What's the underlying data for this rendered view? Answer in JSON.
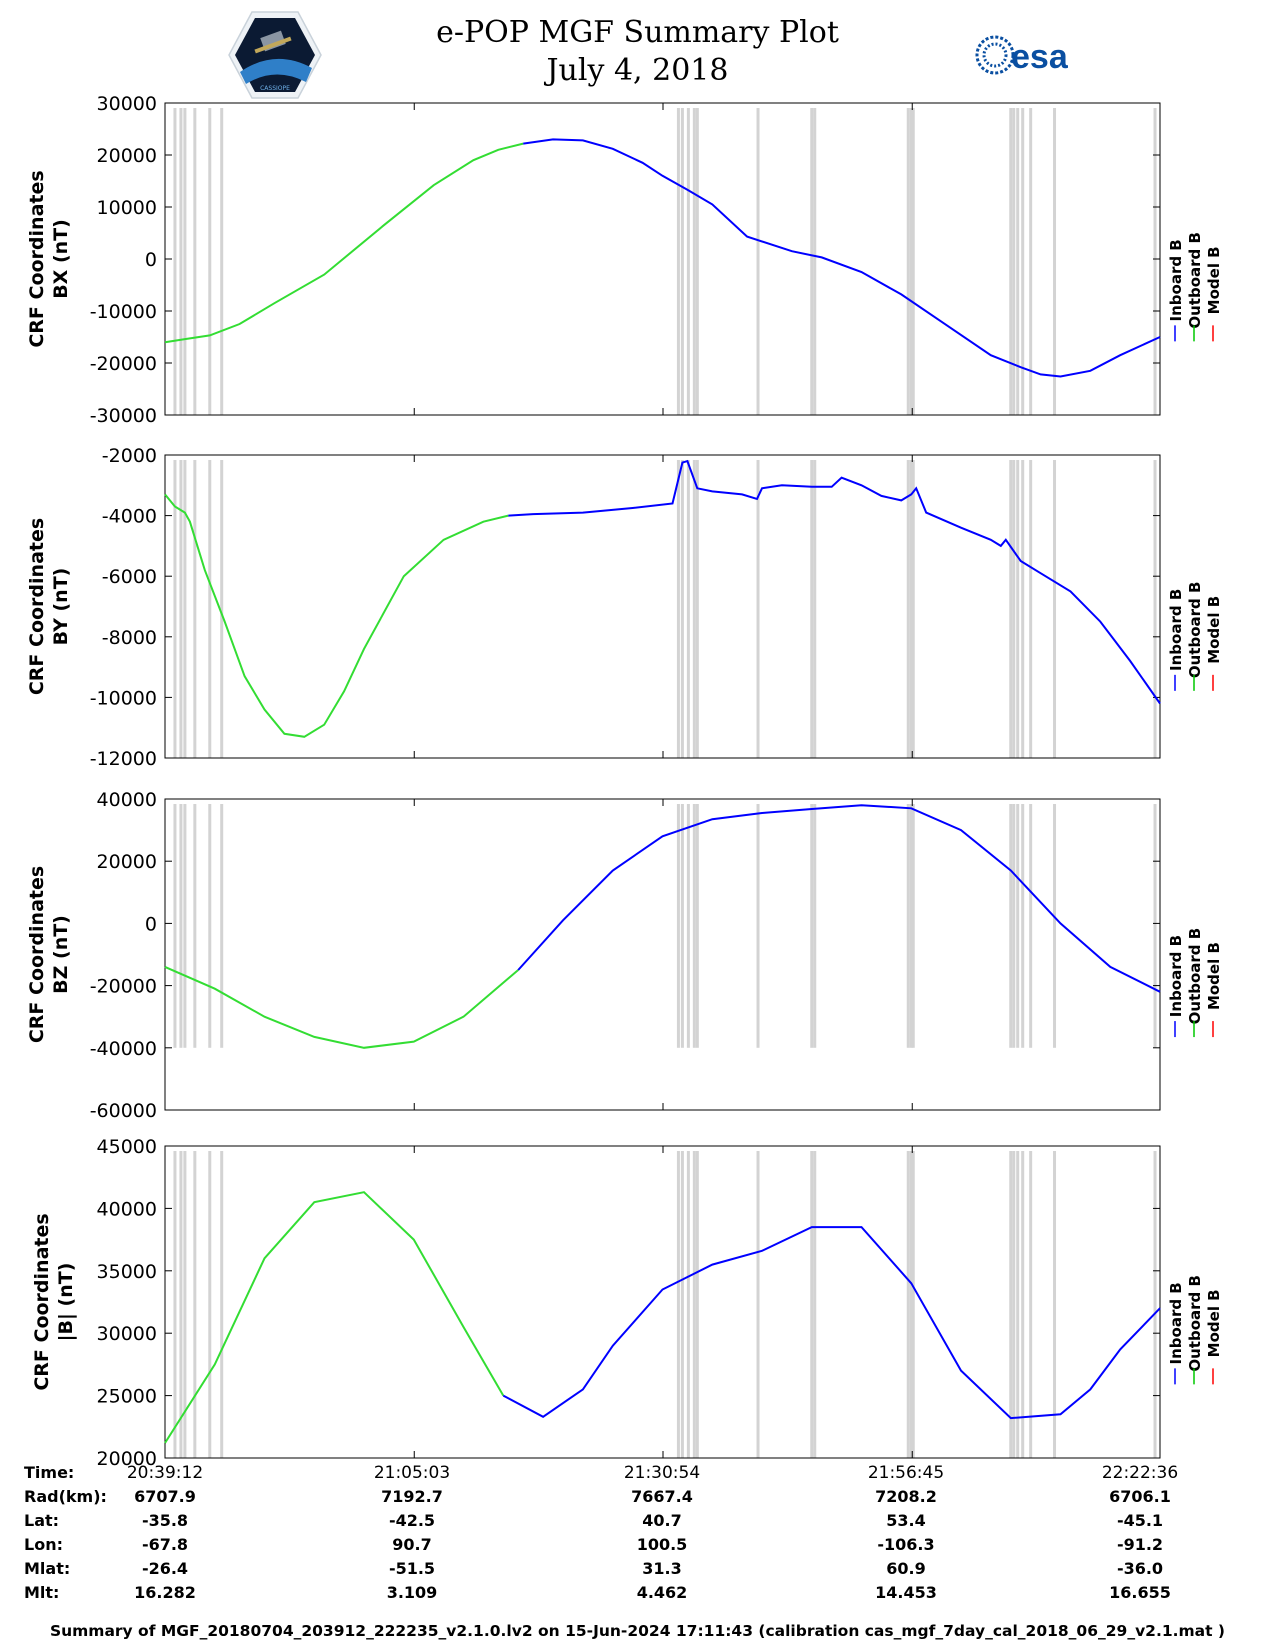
{
  "title": "e-POP MGF Summary Plot",
  "subtitle": "July 4, 2018",
  "logos": {
    "left": "CASSIOPE",
    "right": "esa"
  },
  "legend": [
    {
      "label": "Inboard B",
      "color": "#0000ff"
    },
    {
      "label": "Outboard B",
      "color": "#00c800"
    },
    {
      "label": "Model B",
      "color": "#ff0000"
    }
  ],
  "colors": {
    "inboard": "#0000ff",
    "outboard": "#33dd33",
    "model": "#ff0000",
    "gap": "#d3d3d3"
  },
  "chart_data": [
    {
      "type": "line",
      "ylabel": [
        "CRF Coordinates",
        "BX (nT)"
      ],
      "ylim": [
        -30000,
        30000
      ],
      "yticks": [
        "30000",
        "20000",
        "10000",
        "0",
        "-10000",
        "-20000",
        "-30000"
      ],
      "ytick_values": [
        30000,
        20000,
        10000,
        0,
        -10000,
        -20000,
        -30000
      ],
      "xlim": [
        0,
        1.0
      ],
      "outboard_until": 0.36,
      "x": [
        0,
        0.02,
        0.045,
        0.075,
        0.11,
        0.16,
        0.22,
        0.27,
        0.31,
        0.335,
        0.36,
        0.39,
        0.42,
        0.45,
        0.48,
        0.5,
        0.525,
        0.55,
        0.585,
        0.63,
        0.66,
        0.7,
        0.74,
        0.78,
        0.83,
        0.86,
        0.88,
        0.9,
        0.93,
        0.96,
        1.0
      ],
      "y": [
        -16000,
        -15400,
        -14700,
        -12500,
        -8500,
        -3000,
        6500,
        14200,
        19000,
        21000,
        22200,
        23000,
        22800,
        21200,
        18500,
        16000,
        13300,
        10500,
        4300,
        1500,
        300,
        -2500,
        -6800,
        -12000,
        -18500,
        -20800,
        -22200,
        -22600,
        -21500,
        -18500,
        -15000
      ]
    },
    {
      "type": "line",
      "ylabel": [
        "CRF Coordinates",
        "BY (nT)"
      ],
      "ylim": [
        -12000,
        -2000
      ],
      "yticks": [
        "-2000",
        "-4000",
        "-6000",
        "-8000",
        "-10000",
        "-12000"
      ],
      "ytick_values": [
        -2000,
        -4000,
        -6000,
        -8000,
        -10000,
        -12000
      ],
      "xlim": [
        0,
        1.0
      ],
      "outboard_until": 0.345,
      "x": [
        0,
        0.01,
        0.02,
        0.025,
        0.04,
        0.06,
        0.08,
        0.1,
        0.12,
        0.14,
        0.16,
        0.18,
        0.2,
        0.24,
        0.28,
        0.32,
        0.345,
        0.37,
        0.42,
        0.47,
        0.51,
        0.52,
        0.525,
        0.535,
        0.55,
        0.58,
        0.595,
        0.6,
        0.62,
        0.65,
        0.67,
        0.68,
        0.7,
        0.72,
        0.74,
        0.75,
        0.755,
        0.765,
        0.8,
        0.83,
        0.84,
        0.845,
        0.86,
        0.88,
        0.91,
        0.94,
        0.97,
        1.0
      ],
      "y": [
        -3300,
        -3700,
        -3900,
        -4200,
        -5800,
        -7500,
        -9300,
        -10400,
        -11200,
        -11300,
        -10900,
        -9800,
        -8400,
        -6000,
        -4800,
        -4200,
        -4000,
        -3950,
        -3900,
        -3750,
        -3600,
        -2250,
        -2200,
        -3100,
        -3200,
        -3300,
        -3450,
        -3100,
        -3000,
        -3050,
        -3050,
        -2750,
        -3000,
        -3350,
        -3500,
        -3300,
        -3100,
        -3900,
        -4400,
        -4800,
        -5000,
        -4800,
        -5500,
        -5900,
        -6500,
        -7500,
        -8800,
        -10200
      ]
    },
    {
      "type": "line",
      "ylabel": [
        "CRF Coordinates",
        "BZ (nT)"
      ],
      "ylim": [
        -60000,
        40000
      ],
      "yticks": [
        "40000",
        "20000",
        "0",
        "-20000",
        "-40000",
        "-60000"
      ],
      "ytick_values": [
        40000,
        20000,
        0,
        -20000,
        -40000,
        -60000
      ],
      "xlim": [
        0,
        1.0
      ],
      "outboard_until": 0.355,
      "x": [
        0,
        0.05,
        0.1,
        0.15,
        0.2,
        0.25,
        0.3,
        0.355,
        0.4,
        0.45,
        0.5,
        0.55,
        0.6,
        0.65,
        0.7,
        0.75,
        0.8,
        0.85,
        0.9,
        0.95,
        1.0
      ],
      "y": [
        -14000,
        -21000,
        -30000,
        -36500,
        -40000,
        -38000,
        -30000,
        -15000,
        1000,
        17000,
        28000,
        33500,
        35500,
        36800,
        38000,
        37000,
        30000,
        17000,
        0,
        -14000,
        -22000
      ]
    },
    {
      "type": "line",
      "ylabel": [
        "CRF Coordinates",
        "|B| (nT)"
      ],
      "ylim": [
        20000,
        45000
      ],
      "yticks": [
        "45000",
        "40000",
        "35000",
        "30000",
        "25000",
        "20000"
      ],
      "ytick_values": [
        45000,
        40000,
        35000,
        30000,
        25000,
        20000
      ],
      "xlim": [
        0,
        1.0
      ],
      "outboard_until": 0.34,
      "x": [
        0,
        0.05,
        0.1,
        0.15,
        0.2,
        0.25,
        0.3,
        0.34,
        0.38,
        0.42,
        0.45,
        0.5,
        0.55,
        0.6,
        0.65,
        0.7,
        0.75,
        0.8,
        0.85,
        0.9,
        0.93,
        0.96,
        1.0
      ],
      "y": [
        21200,
        27500,
        36000,
        40500,
        41300,
        37500,
        30500,
        25000,
        23300,
        25500,
        29000,
        33500,
        35500,
        36600,
        38500,
        38500,
        34000,
        27000,
        23200,
        23500,
        25500,
        28700,
        32000
      ]
    }
  ],
  "time_table": {
    "labels": [
      "Time:",
      "Rad(km):",
      "Lat:",
      "Lon:",
      "Mlat:",
      "Mlt:"
    ],
    "columns": [
      [
        "20:39:12",
        "6707.9",
        "-35.8",
        "-67.8",
        "-26.4",
        "16.282"
      ],
      [
        "21:05:03",
        "7192.7",
        "-42.5",
        "90.7",
        "-51.5",
        "3.109"
      ],
      [
        "21:30:54",
        "7667.4",
        "40.7",
        "100.5",
        "31.3",
        "4.462"
      ],
      [
        "21:56:45",
        "7208.2",
        "53.4",
        "-106.3",
        "60.9",
        "14.453"
      ],
      [
        "22:22:36",
        "6706.1",
        "-45.1",
        "-91.2",
        "-36.0",
        "16.655"
      ]
    ]
  },
  "footer": "Summary of MGF_20180704_203912_222235_v2.1.0.lv2 on 15-Jun-2024 17:11:43 (calibration cas_mgf_7day_cal_2018_06_29_v2.1.mat )"
}
